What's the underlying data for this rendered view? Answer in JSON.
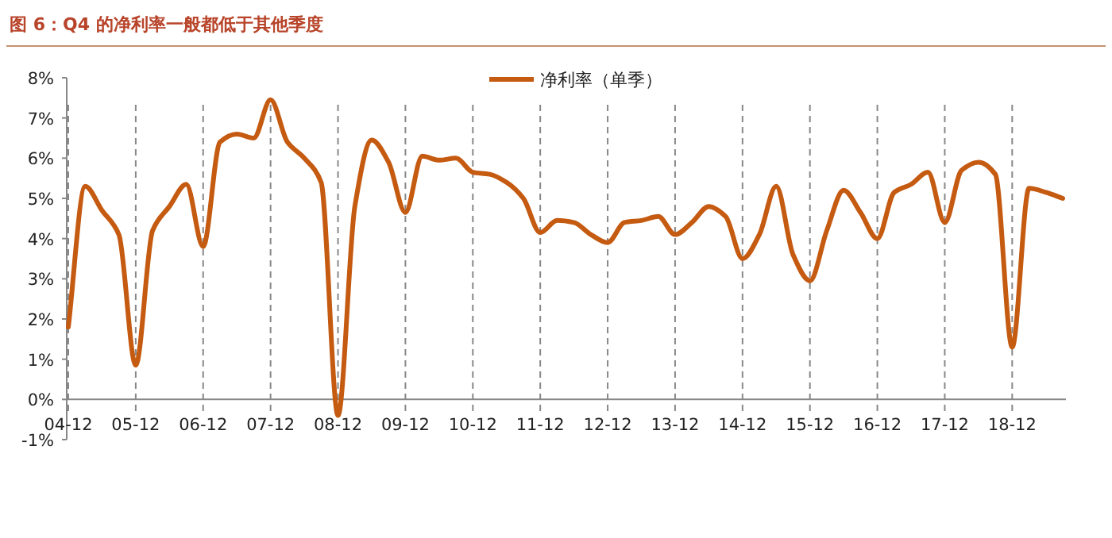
{
  "chart_data": {
    "type": "line",
    "title": "图 6：Q4 的净利率一般都低于其他季度",
    "categories": [
      "04-12",
      null,
      null,
      null,
      "05-12",
      null,
      null,
      null,
      "06-12",
      null,
      null,
      null,
      "07-12",
      null,
      null,
      null,
      "08-12",
      null,
      null,
      null,
      "09-12",
      null,
      null,
      null,
      "10-12",
      null,
      null,
      null,
      "11-12",
      null,
      null,
      null,
      "12-12",
      null,
      null,
      null,
      "13-12",
      null,
      null,
      null,
      "14-12",
      null,
      null,
      null,
      "15-12",
      null,
      null,
      null,
      "16-12",
      null,
      null,
      null,
      "17-12",
      null,
      null,
      null,
      "18-12",
      null,
      null,
      null
    ],
    "series": [
      {
        "name": "净利率（单季）",
        "color": "#c55a11",
        "values": [
          1.8,
          5.3,
          4.7,
          4.1,
          0.85,
          4.2,
          4.8,
          5.35,
          3.8,
          6.4,
          6.6,
          6.5,
          7.45,
          6.4,
          6.0,
          5.4,
          -0.4,
          4.8,
          6.45,
          5.9,
          4.65,
          6.05,
          5.95,
          6.0,
          5.65,
          5.6,
          5.4,
          5.0,
          4.15,
          4.45,
          4.4,
          4.1,
          3.9,
          4.4,
          4.45,
          4.55,
          4.1,
          4.4,
          4.8,
          4.55,
          3.5,
          4.1,
          5.3,
          3.6,
          2.95,
          4.2,
          5.2,
          4.65,
          4.0,
          5.15,
          5.35,
          5.65,
          4.4,
          5.7,
          5.9,
          5.6,
          1.3,
          5.25,
          5.15,
          5.0
        ]
      }
    ],
    "ylim": [
      -1,
      8
    ],
    "yticks": [
      {
        "value": -1,
        "label": "-1%"
      },
      {
        "value": 0,
        "label": "0%"
      },
      {
        "value": 1,
        "label": "1%"
      },
      {
        "value": 2,
        "label": "2%"
      },
      {
        "value": 3,
        "label": "3%"
      },
      {
        "value": 4,
        "label": "4%"
      },
      {
        "value": 5,
        "label": "5%"
      },
      {
        "value": 6,
        "label": "6%"
      },
      {
        "value": 7,
        "label": "7%"
      },
      {
        "value": 8,
        "label": "8%"
      }
    ],
    "grid": "x",
    "legend": "top"
  }
}
